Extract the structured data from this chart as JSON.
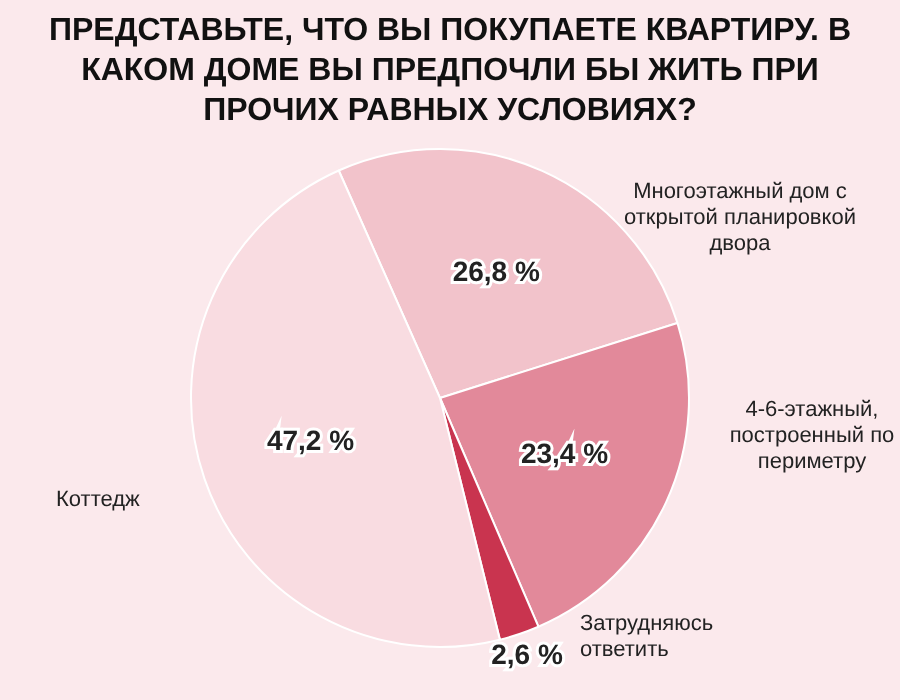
{
  "chart_data": {
    "type": "pie",
    "title": "ПРЕДСТАВЬТЕ, ЧТО ВЫ ПОКУПАЕТЕ КВАРТИРУ. В КАКОМ ДОМЕ ВЫ ПРЕДПОЧЛИ БЫ ЖИТЬ ПРИ ПРОЧИХ РАВНЫХ УСЛОВИЯХ?",
    "categories": [
      "Многоэтажный дом с открытой планировкой двора",
      "4-6-этажный, построенный по периметру",
      "Затрудняюсь ответить",
      "Коттедж"
    ],
    "values": [
      26.8,
      23.4,
      2.6,
      47.2
    ],
    "colors": [
      "#f2c3cb",
      "#e2899a",
      "#c9344f",
      "#f9dce1"
    ],
    "value_labels": [
      "26,8 %",
      "23,4 %",
      "2,6 %",
      "47,2 %"
    ],
    "legend": false
  }
}
